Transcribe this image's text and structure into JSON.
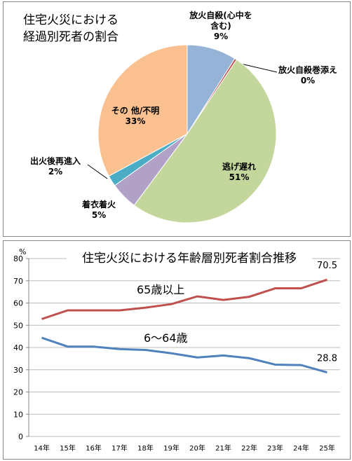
{
  "chart_data": [
    {
      "type": "pie",
      "title": "住宅火災における経過別死者の割合",
      "categories": [
        "放火自殺(心中を含む)",
        "放火自殺巻添え",
        "逃げ遅れ",
        "着衣着火",
        "出火後再進入",
        "その 他/不明"
      ],
      "values": [
        9,
        0.4,
        51,
        5,
        2,
        33
      ],
      "value_labels": [
        "9%",
        "0%",
        "51%",
        "5%",
        "2%",
        "33%"
      ],
      "colors": [
        "#95b3d7",
        "#c0504d",
        "#c3d69b",
        "#b2a1c7",
        "#4bacc6",
        "#fac090"
      ]
    },
    {
      "type": "line",
      "title": "住宅火災における年齢層別死者割合推移",
      "ylabel": "%",
      "categories": [
        "14年",
        "15年",
        "16年",
        "17年",
        "18年",
        "19年",
        "20年",
        "21年",
        "22年",
        "23年",
        "24年",
        "25年"
      ],
      "series": [
        {
          "name": "65歳以上",
          "color": "#c0504d",
          "values": [
            52.8,
            56.7,
            56.7,
            56.7,
            57.9,
            59.5,
            63.0,
            61.4,
            62.8,
            66.6,
            66.6,
            70.5
          ]
        },
        {
          "name": "6～64歳",
          "color": "#4f81bd",
          "values": [
            44.4,
            40.4,
            40.4,
            39.3,
            38.9,
            37.4,
            35.5,
            36.4,
            35.2,
            32.3,
            32.1,
            28.8
          ]
        }
      ],
      "ylim": [
        0,
        80
      ],
      "yticks": [
        0,
        10,
        20,
        30,
        40,
        50,
        60,
        70,
        80
      ],
      "grid": true
    }
  ]
}
